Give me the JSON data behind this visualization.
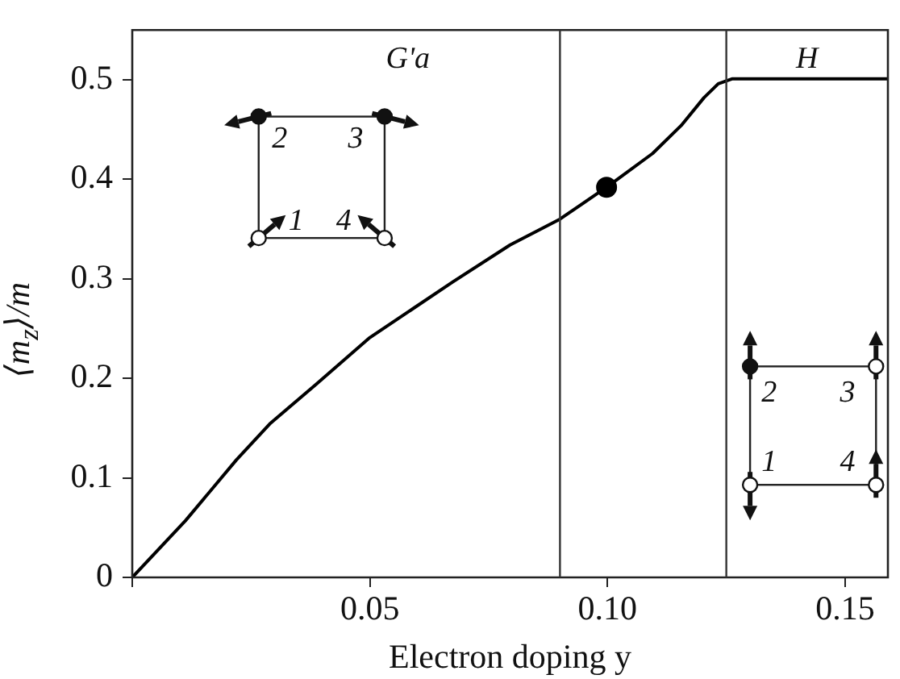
{
  "chart_data": {
    "type": "line",
    "xlabel": "Electron doping y",
    "ylabel": "⟨m$_{z}$⟩/m",
    "xlim": [
      0,
      0.159
    ],
    "ylim": [
      0,
      0.55
    ],
    "xticks": [
      {
        "value": 0,
        "label": null
      },
      {
        "value": 0.05,
        "label": "0.05"
      },
      {
        "value": 0.1,
        "label": "0.10"
      },
      {
        "value": 0.15,
        "label": "0.15"
      }
    ],
    "yticks": [
      0,
      0.1,
      0.2,
      0.3,
      0.4,
      0.5
    ],
    "grid": false,
    "legend": false,
    "marker": "none",
    "line_style": "solid",
    "series": [
      {
        "color": "#000000",
        "x": [
          0,
          0.0112,
          0.0219,
          0.0291,
          0.0387,
          0.05,
          0.0675,
          0.0795,
          0.09,
          0.0998,
          0.1095,
          0.1155,
          0.1203,
          0.1233,
          0.1263,
          0.159
        ],
        "values": [
          0,
          0.057,
          0.118,
          0.155,
          0.194,
          0.241,
          0.297,
          0.334,
          0.36,
          0.392,
          0.426,
          0.454,
          0.482,
          0.496,
          0.501,
          0.501
        ]
      },
      {
        "type": "scatter",
        "marker": "circle",
        "color": "#000000",
        "x": [
          0.0998
        ],
        "values": [
          0.392
        ]
      }
    ],
    "ref_lines": [
      {
        "axis": "x",
        "value": 0.09,
        "color": "#333333"
      },
      {
        "axis": "x",
        "value": 0.125,
        "color": "#333333"
      }
    ],
    "annotations": [
      "G'a",
      "H",
      "2",
      "3",
      "1",
      "4",
      "2",
      "3",
      "1",
      "4"
    ]
  }
}
